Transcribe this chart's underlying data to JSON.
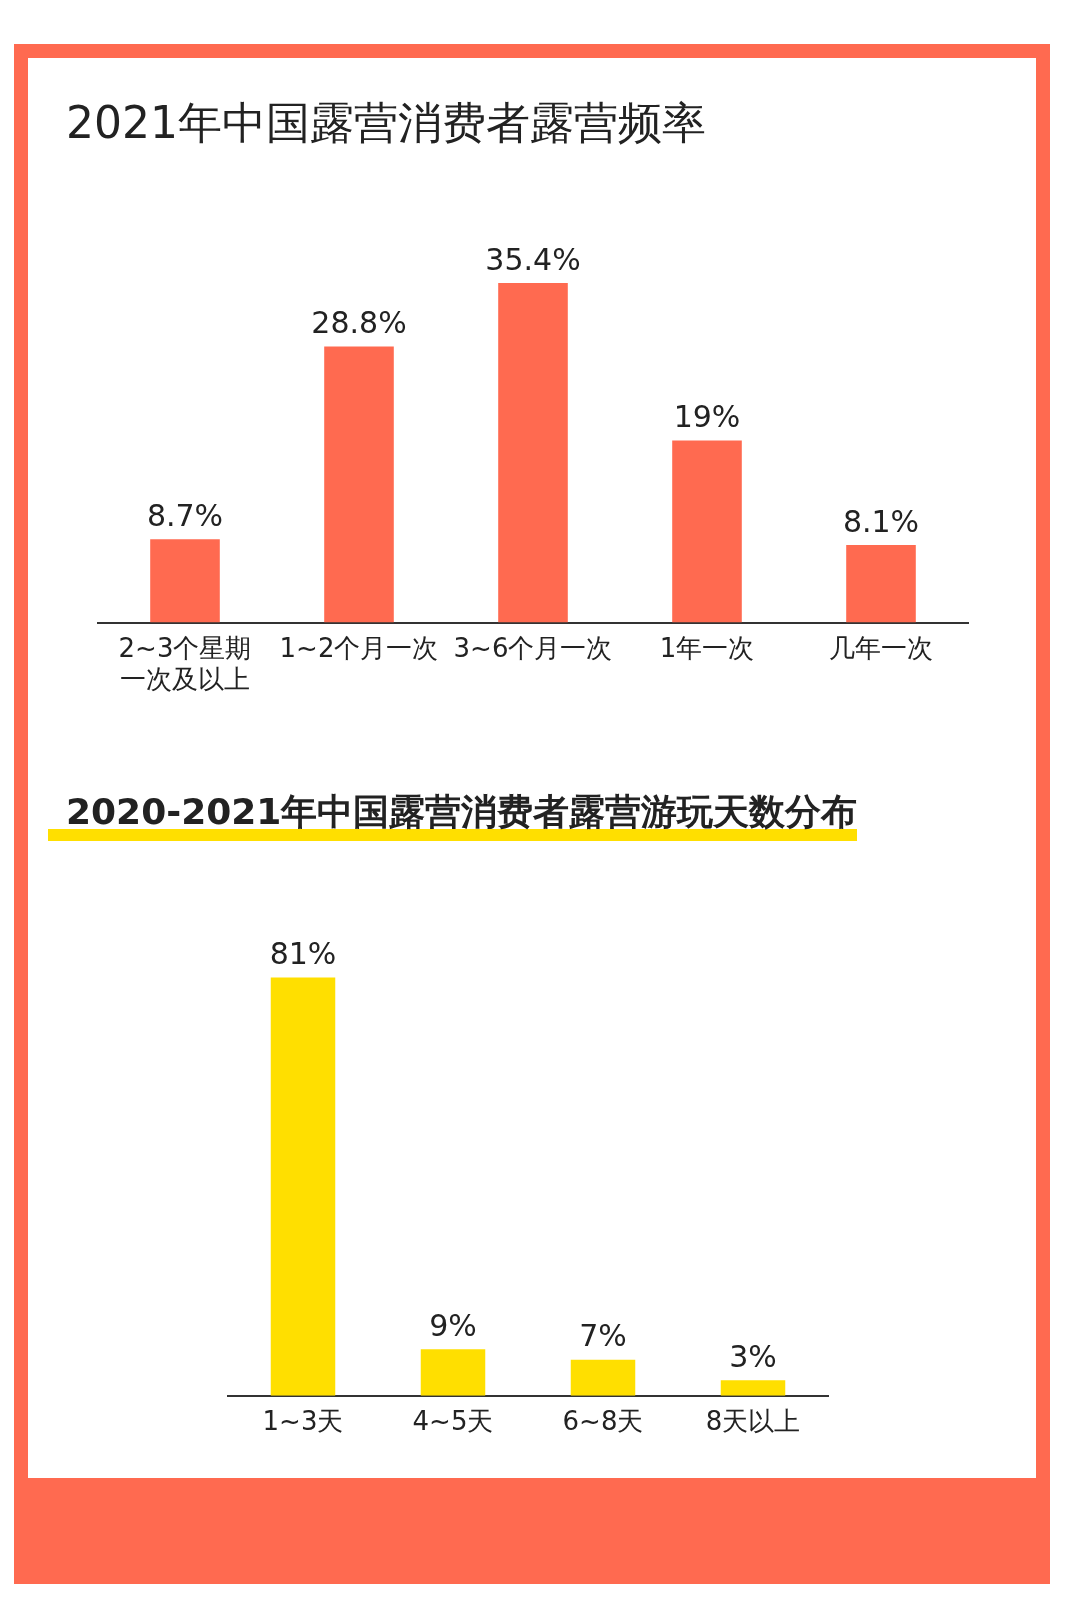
{
  "chart_data": [
    {
      "type": "bar",
      "title": "2021年中国露营消费者露营频率",
      "categories": [
        "2~3个星期一次及以上",
        "1~2个月一次",
        "3~6个月一次",
        "1年一次",
        "几年一次"
      ],
      "values": [
        8.7,
        28.8,
        35.4,
        19,
        8.1
      ],
      "value_labels": [
        "8.7%",
        "28.8%",
        "35.4%",
        "19%",
        "8.1%"
      ],
      "color": "#ff6a50"
    },
    {
      "type": "bar",
      "title": "2020-2021年中国露营消费者露营游玩天数分布",
      "categories": [
        "1~3天",
        "4~5天",
        "6~8天",
        "8天以上"
      ],
      "values": [
        81,
        9,
        7,
        3
      ],
      "value_labels": [
        "81%",
        "9%",
        "7%",
        "3%"
      ],
      "color": "#ffdf00"
    }
  ]
}
